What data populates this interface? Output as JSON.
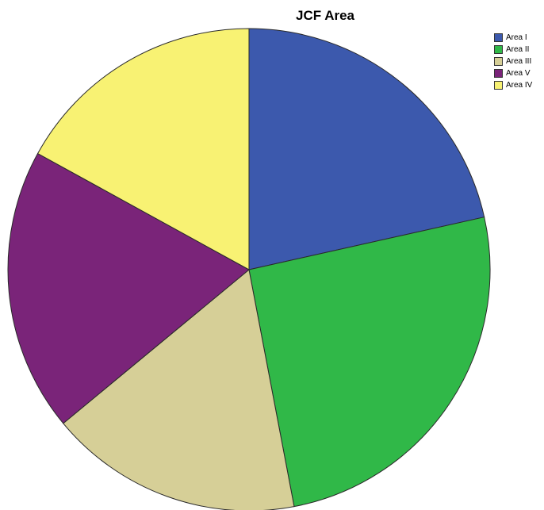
{
  "chart_data": {
    "type": "pie",
    "title": "JCF Area",
    "slices": [
      {
        "name": "Area I",
        "value": 21.5,
        "color": "#3c59ad"
      },
      {
        "name": "Area II",
        "value": 25.5,
        "color": "#30b848"
      },
      {
        "name": "Area III",
        "value": 17.0,
        "color": "#d6cf97"
      },
      {
        "name": "Area V",
        "value": 19.0,
        "color": "#7a2479"
      },
      {
        "name": "Area IV",
        "value": 17.0,
        "color": "#f8f273"
      }
    ],
    "legend_position": "top-right"
  }
}
